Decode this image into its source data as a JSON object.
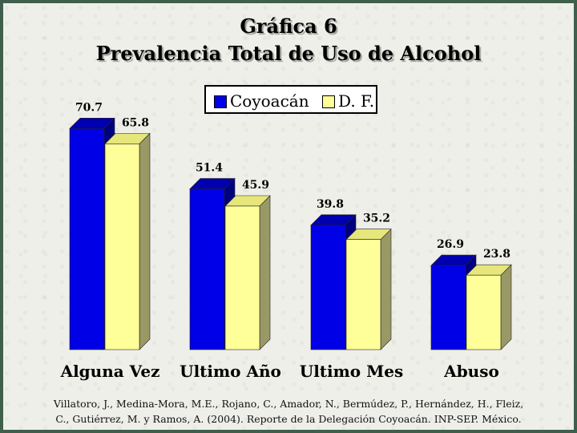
{
  "chart_data": {
    "type": "bar",
    "title": "Gráfica 6",
    "subtitle": "Prevalencia Total de Uso de Alcohol",
    "categories": [
      "Alguna Vez",
      "Ultimo Año",
      "Ultimo Mes",
      "Abuso"
    ],
    "series": [
      {
        "name": "Coyoacán",
        "values": [
          70.7,
          51.4,
          39.8,
          26.9
        ],
        "color": "#0000e6",
        "side": "#000080",
        "top": "#0000b0"
      },
      {
        "name": "D. F.",
        "values": [
          65.8,
          45.9,
          35.2,
          23.8
        ],
        "color": "#ffff99",
        "side": "#999966",
        "top": "#e6e67a"
      }
    ],
    "data_labels": [
      [
        "70.7",
        "51.4",
        "39.8",
        "26.9"
      ],
      [
        "65.8",
        "45.9",
        "35.2",
        "23.8"
      ]
    ],
    "ylim": [
      0,
      80
    ],
    "grid": false,
    "legend_position": "top"
  },
  "citation": {
    "line1": "Villatoro, J., Medina-Mora, M.E., Rojano, C., Amador, N., Bermúdez, P., Hernández, H., Fleiz,",
    "line2": "C., Gutiérrez, M. y Ramos, A. (2004). Reporte de la Delegación Coyoacán. INP-SEP. México."
  },
  "colors": {
    "background": "#efefe9",
    "border": "#3f5f4a"
  }
}
